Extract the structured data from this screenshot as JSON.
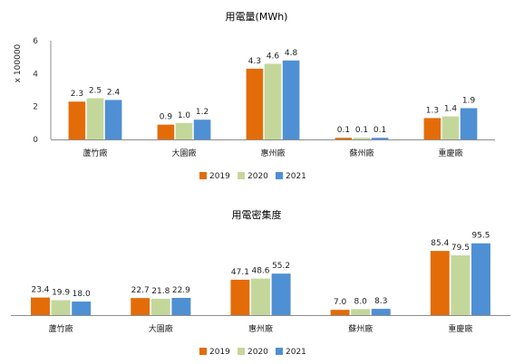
{
  "colors": {
    "2019": "#e36c09",
    "2020": "#c4d79b",
    "2021": "#4f8fd4",
    "axis": "#8c8c8c"
  },
  "chart_data": [
    {
      "type": "bar",
      "title": "用電量(MWh)",
      "ylabel": "x 100000",
      "yticks": [
        "0",
        "2",
        "4",
        "6"
      ],
      "ylim": [
        0,
        6
      ],
      "categories": [
        "蘆竹廠",
        "大園廠",
        "惠州廠",
        "蘇州廠",
        "重慶廠"
      ],
      "series": [
        {
          "name": "2019",
          "values": [
            2.3,
            0.9,
            4.3,
            0.1,
            1.3
          ],
          "labels": [
            "2.3",
            "0.9",
            "4.3",
            "0.1",
            "1.3"
          ]
        },
        {
          "name": "2020",
          "values": [
            2.5,
            1.0,
            4.6,
            0.1,
            1.4
          ],
          "labels": [
            "2.5",
            "1.0",
            "4.6",
            "0.1",
            "1.4"
          ]
        },
        {
          "name": "2021",
          "values": [
            2.4,
            1.2,
            4.8,
            0.1,
            1.9
          ],
          "labels": [
            "2.4",
            "1.2",
            "4.8",
            "0.1",
            "1.9"
          ]
        }
      ],
      "legend": "bottom"
    },
    {
      "type": "bar",
      "title": "用電密集度",
      "ylim": [
        0,
        100
      ],
      "categories": [
        "蘆竹廠",
        "大園廠",
        "惠州廠",
        "蘇州廠",
        "重慶廠"
      ],
      "series": [
        {
          "name": "2019",
          "values": [
            23.4,
            22.7,
            47.1,
            7.0,
            85.4
          ],
          "labels": [
            "23.4",
            "22.7",
            "47.1",
            "7.0",
            "85.4"
          ]
        },
        {
          "name": "2020",
          "values": [
            19.9,
            21.8,
            48.6,
            8.0,
            79.5
          ],
          "labels": [
            "19.9",
            "21.8",
            "48.6",
            "8.0",
            "79.5"
          ]
        },
        {
          "name": "2021",
          "values": [
            18.0,
            22.9,
            55.2,
            8.3,
            95.5
          ],
          "labels": [
            "18.0",
            "22.9",
            "55.2",
            "8.3",
            "95.5"
          ]
        }
      ],
      "legend": "bottom"
    }
  ]
}
